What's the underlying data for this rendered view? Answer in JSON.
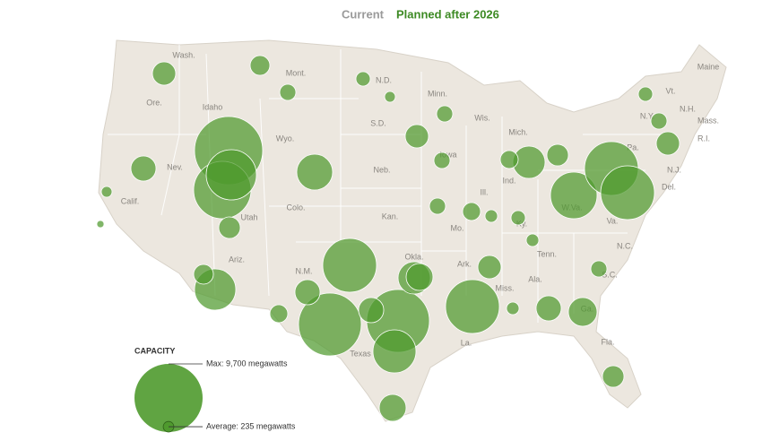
{
  "toggle": {
    "current": "Current",
    "planned": "Planned after 2026"
  },
  "states": [
    "Wash.",
    "Ore.",
    "Idaho",
    "Mont.",
    "Wyo.",
    "N.D.",
    "S.D.",
    "Minn.",
    "Wis.",
    "Mich.",
    "Nev.",
    "Calif.",
    "Utah",
    "Colo.",
    "Neb.",
    "Iowa",
    "Ill.",
    "Ind.",
    "Kan.",
    "Mo.",
    "Ky.",
    "W.Va.",
    "Va.",
    "N.C.",
    "Tenn.",
    "S.C.",
    "Ga.",
    "Ala.",
    "Miss.",
    "Ark.",
    "La.",
    "Texas",
    "Okla.",
    "N.M.",
    "Ariz.",
    "Fla.",
    "Pa.",
    "N.Y.",
    "Vt.",
    "N.H.",
    "Maine",
    "Mass.",
    "R.I.",
    "N.J.",
    "Del."
  ],
  "plants_mw": [
    9700,
    6880,
    5270,
    1135,
    810,
    1320,
    545,
    2690,
    6045,
    8230,
    1320,
    670,
    8230,
    2180,
    1320,
    3870,
    1510,
    1510,
    6045,
    1135,
    330,
    1320,
    1720,
    970,
    4540,
    6045,
    6045,
    2180,
    970,
    670,
    1135,
    430,
    545,
    545,
    545,
    1135,
    545,
    670,
    3550,
    810,
    970,
    240,
    110,
    430,
    240,
    330,
    430,
    330,
    545
  ],
  "legend": {
    "title": "CAPACITY",
    "max": {
      "value": 9700,
      "label": "Max: 9,700 megawatts"
    },
    "average": {
      "value": 235,
      "label": "Average: 235 megawatts"
    }
  }
}
